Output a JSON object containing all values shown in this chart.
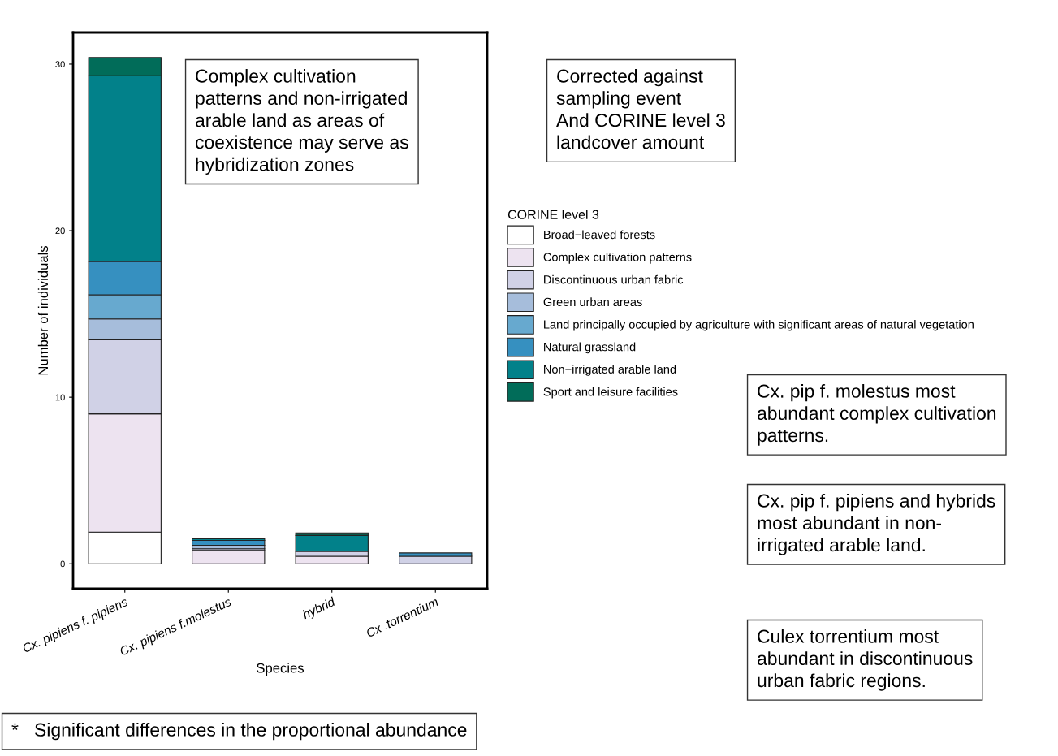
{
  "chart_data": {
    "type": "bar",
    "stacked": true,
    "xlabel": "Species",
    "ylabel": "Number of individuals",
    "legend_title": "CORINE level 3",
    "legend": "right",
    "categories": [
      "Cx. pipiens f. pipiens",
      "Cx. pipiens f.molestus",
      "hybrid",
      "Cx .torrentium"
    ],
    "ylim": [
      -1.5,
      31.9
    ],
    "yticks": [
      0,
      10,
      20,
      30
    ],
    "grid": false,
    "series": [
      {
        "name": "Broad−leaved forests",
        "color": "#ffffff",
        "values": [
          1.9,
          0,
          0,
          0
        ]
      },
      {
        "name": "Complex cultivation patterns",
        "color": "#ede3f0",
        "values": [
          7.1,
          0.8,
          0.45,
          0
        ]
      },
      {
        "name": "Discontinuous urban fabric",
        "color": "#d0d1e6",
        "values": [
          4.45,
          0.1,
          0.3,
          0.45
        ]
      },
      {
        "name": "Green urban areas",
        "color": "#a6bddb",
        "values": [
          1.25,
          0.2,
          0,
          0
        ]
      },
      {
        "name": "Land principally occupied by agriculture with significant areas of natural vegetation",
        "color": "#67a9cf",
        "values": [
          1.45,
          0,
          0,
          0
        ]
      },
      {
        "name": "Natural grassland",
        "color": "#3690c0",
        "values": [
          2.0,
          0.3,
          0,
          0.2
        ]
      },
      {
        "name": "Non−irrigated arable land",
        "color": "#02818a",
        "values": [
          11.15,
          0.1,
          0.95,
          0
        ]
      },
      {
        "name": "Sport and leisure facilities",
        "color": "#016c59",
        "values": [
          1.1,
          0,
          0.15,
          0
        ]
      }
    ],
    "annotations": [
      "Complex cultivation\npatterns and non-irrigated\narable land as areas of\ncoexistence may serve as\nhybridization zones",
      "Corrected against\nsampling event\nAnd CORINE level 3\nlandcover amount",
      "Cx. pip f. molestus most\nabundant complex cultivation\npatterns.",
      "Cx. pip f. pipiens and hybrids\nmost abundant in non-\nirrigated arable land.",
      "Culex torrentium most\nabundant in discontinuous\nurban fabric regions.",
      "*   Significant differences in the proportional abundance"
    ]
  }
}
